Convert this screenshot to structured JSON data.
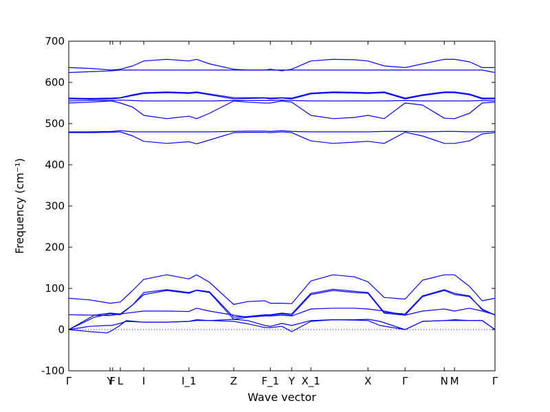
{
  "chart_data": {
    "type": "line",
    "xlabel": "Wave vector",
    "ylabel": "Frequency (cm⁻¹)",
    "ylim": [
      -100,
      700
    ],
    "yticks": [
      -100,
      0,
      100,
      200,
      300,
      400,
      500,
      600,
      700
    ],
    "xlim": [
      0,
      1
    ],
    "grid": false,
    "line_color": "#0000ff",
    "zero_line": {
      "y": 0,
      "style": "dotted",
      "color": "#0000ff"
    },
    "high_symmetry_points": [
      {
        "label": "Γ",
        "x": 0.0
      },
      {
        "label": "Y",
        "x": 0.097
      },
      {
        "label": "F",
        "x": 0.103
      },
      {
        "label": "L",
        "x": 0.121
      },
      {
        "label": "I",
        "x": 0.176
      },
      {
        "label": "I_1",
        "x": 0.282
      },
      {
        "label": "Z",
        "x": 0.387
      },
      {
        "label": "F_1",
        "x": 0.473
      },
      {
        "label": "Y",
        "x": 0.523
      },
      {
        "label": "X_1",
        "x": 0.568
      },
      {
        "label": "X",
        "x": 0.702
      },
      {
        "label": "Γ",
        "x": 0.789
      },
      {
        "label": "N",
        "x": 0.881
      },
      {
        "label": "M",
        "x": 0.905
      },
      {
        "label": "Γ",
        "x": 1.0
      }
    ],
    "series": [
      {
        "x": [
          0,
          0.05,
          0.09,
          0.1,
          0.12,
          0.135,
          0.176,
          0.23,
          0.282,
          0.3,
          0.33,
          0.387,
          0.42,
          0.46,
          0.473,
          0.5,
          0.523,
          0.568,
          0.62,
          0.67,
          0.702,
          0.73,
          0.789,
          0.83,
          0.881,
          0.905,
          0.94,
          0.97,
          1.0
        ],
        "y": [
          0,
          -5,
          -8,
          -3,
          10,
          22,
          18,
          18,
          20,
          24,
          22,
          20,
          14,
          5,
          5,
          8,
          -5,
          20,
          24,
          23,
          22,
          10,
          0,
          20,
          22,
          22,
          22,
          22,
          0
        ]
      },
      {
        "x": [
          0,
          0.05,
          0.09,
          0.1,
          0.12,
          0.135,
          0.176,
          0.23,
          0.282,
          0.3,
          0.33,
          0.387,
          0.42,
          0.46,
          0.473,
          0.5,
          0.523,
          0.568,
          0.62,
          0.67,
          0.702,
          0.73,
          0.789,
          0.83,
          0.881,
          0.905,
          0.94,
          0.97,
          1.0
        ],
        "y": [
          0,
          8,
          10,
          10,
          15,
          20,
          18,
          18,
          20,
          22,
          22,
          25,
          22,
          10,
          8,
          15,
          10,
          22,
          24,
          24,
          25,
          20,
          0,
          20,
          22,
          24,
          22,
          22,
          0
        ]
      },
      {
        "x": [
          0,
          0.06,
          0.097,
          0.121,
          0.15,
          0.176,
          0.23,
          0.282,
          0.3,
          0.33,
          0.387,
          0.42,
          0.46,
          0.473,
          0.5,
          0.523,
          0.568,
          0.62,
          0.67,
          0.702,
          0.74,
          0.789,
          0.83,
          0.881,
          0.905,
          0.94,
          0.97,
          1.0
        ],
        "y": [
          0,
          30,
          38,
          36,
          60,
          85,
          95,
          88,
          95,
          90,
          25,
          30,
          35,
          35,
          38,
          35,
          85,
          95,
          90,
          88,
          40,
          35,
          80,
          95,
          85,
          80,
          50,
          35
        ]
      },
      {
        "x": [
          0,
          0.06,
          0.097,
          0.121,
          0.15,
          0.176,
          0.23,
          0.282,
          0.3,
          0.33,
          0.387,
          0.42,
          0.46,
          0.473,
          0.5,
          0.523,
          0.568,
          0.62,
          0.67,
          0.702,
          0.74,
          0.789,
          0.83,
          0.881,
          0.905,
          0.94,
          0.97,
          1.0
        ],
        "y": [
          0,
          35,
          40,
          38,
          60,
          90,
          97,
          90,
          96,
          92,
          30,
          32,
          36,
          36,
          40,
          38,
          88,
          98,
          93,
          90,
          42,
          38,
          82,
          97,
          88,
          82,
          48,
          36
        ]
      },
      {
        "x": [
          0,
          0.06,
          0.097,
          0.121,
          0.176,
          0.23,
          0.282,
          0.3,
          0.33,
          0.387,
          0.42,
          0.46,
          0.473,
          0.5,
          0.523,
          0.568,
          0.62,
          0.67,
          0.702,
          0.74,
          0.789,
          0.83,
          0.881,
          0.905,
          0.94,
          0.97,
          1.0
        ],
        "y": [
          36,
          35,
          34,
          38,
          45,
          45,
          44,
          52,
          45,
          35,
          30,
          33,
          33,
          35,
          33,
          50,
          52,
          52,
          50,
          45,
          35,
          45,
          50,
          45,
          52,
          45,
          36
        ]
      },
      {
        "x": [
          0,
          0.05,
          0.097,
          0.121,
          0.15,
          0.176,
          0.23,
          0.282,
          0.3,
          0.33,
          0.387,
          0.42,
          0.46,
          0.473,
          0.5,
          0.523,
          0.568,
          0.62,
          0.67,
          0.702,
          0.74,
          0.789,
          0.83,
          0.881,
          0.905,
          0.94,
          0.97,
          1.0
        ],
        "y": [
          76,
          72,
          64,
          67,
          95,
          122,
          133,
          123,
          133,
          115,
          61,
          68,
          70,
          64,
          64,
          63,
          118,
          133,
          128,
          116,
          78,
          74,
          120,
          133,
          133,
          105,
          70,
          76
        ]
      },
      {
        "x": [
          0,
          0.05,
          0.1,
          0.121,
          0.15,
          0.176,
          0.23,
          0.282,
          0.3,
          0.33,
          0.387,
          0.42,
          0.46,
          0.473,
          0.5,
          0.523,
          0.568,
          0.62,
          0.67,
          0.702,
          0.74,
          0.789,
          0.83,
          0.881,
          0.905,
          0.94,
          0.97,
          1.0
        ],
        "y": [
          480,
          480,
          481,
          483,
          480,
          480,
          480,
          480,
          480,
          480,
          481,
          482,
          482,
          481,
          483,
          481,
          480,
          480,
          480,
          480,
          481,
          481,
          480,
          481,
          481,
          480,
          480,
          481
        ]
      },
      {
        "x": [
          0,
          0.05,
          0.1,
          0.121,
          0.15,
          0.176,
          0.23,
          0.282,
          0.3,
          0.33,
          0.387,
          0.42,
          0.46,
          0.473,
          0.5,
          0.523,
          0.568,
          0.62,
          0.67,
          0.702,
          0.74,
          0.789,
          0.83,
          0.881,
          0.905,
          0.94,
          0.97,
          1.0
        ],
        "y": [
          478,
          478,
          479,
          480,
          470,
          457,
          452,
          456,
          451,
          460,
          478,
          479,
          479,
          478,
          480,
          478,
          458,
          452,
          455,
          457,
          452,
          479,
          470,
          452,
          452,
          458,
          475,
          478
        ]
      },
      {
        "x": [
          0,
          0.05,
          0.1,
          0.121,
          0.15,
          0.176,
          0.23,
          0.282,
          0.3,
          0.33,
          0.387,
          0.42,
          0.46,
          0.473,
          0.5,
          0.523,
          0.568,
          0.62,
          0.67,
          0.702,
          0.74,
          0.789,
          0.83,
          0.881,
          0.905,
          0.94,
          0.97,
          1.0
        ],
        "y": [
          550,
          552,
          555,
          550,
          540,
          520,
          512,
          518,
          512,
          525,
          555,
          552,
          550,
          550,
          555,
          552,
          520,
          512,
          515,
          520,
          512,
          550,
          545,
          513,
          512,
          525,
          550,
          552
        ]
      },
      {
        "x": [
          0,
          0.05,
          0.1,
          0.121,
          0.15,
          0.176,
          0.23,
          0.282,
          0.3,
          0.33,
          0.387,
          0.42,
          0.46,
          0.473,
          0.5,
          0.523,
          0.568,
          0.62,
          0.67,
          0.702,
          0.74,
          0.789,
          0.83,
          0.881,
          0.905,
          0.94,
          0.97,
          1.0
        ],
        "y": [
          555,
          556,
          556,
          557,
          556,
          555,
          555,
          555,
          555,
          555,
          556,
          556,
          556,
          556,
          557,
          556,
          555,
          555,
          555,
          555,
          555,
          556,
          555,
          555,
          555,
          555,
          556,
          555
        ]
      },
      {
        "x": [
          0,
          0.05,
          0.1,
          0.121,
          0.15,
          0.176,
          0.23,
          0.282,
          0.3,
          0.33,
          0.387,
          0.42,
          0.46,
          0.473,
          0.5,
          0.523,
          0.568,
          0.62,
          0.67,
          0.702,
          0.74,
          0.789,
          0.83,
          0.881,
          0.905,
          0.94,
          0.97,
          1.0
        ],
        "y": [
          560,
          559,
          560,
          562,
          568,
          573,
          575,
          573,
          575,
          570,
          560,
          561,
          562,
          560,
          562,
          560,
          572,
          575,
          574,
          573,
          575,
          560,
          568,
          575,
          575,
          570,
          560,
          560
        ]
      },
      {
        "x": [
          0,
          0.05,
          0.1,
          0.121,
          0.15,
          0.176,
          0.23,
          0.282,
          0.3,
          0.33,
          0.387,
          0.42,
          0.46,
          0.473,
          0.5,
          0.523,
          0.568,
          0.62,
          0.67,
          0.702,
          0.74,
          0.789,
          0.83,
          0.881,
          0.905,
          0.94,
          0.97,
          1.0
        ],
        "y": [
          562,
          561,
          562,
          563,
          570,
          575,
          577,
          575,
          577,
          572,
          563,
          563,
          563,
          562,
          563,
          562,
          574,
          577,
          576,
          575,
          577,
          562,
          570,
          577,
          577,
          572,
          562,
          562
        ]
      },
      {
        "x": [
          0,
          0.05,
          0.1,
          0.121,
          0.15,
          0.176,
          0.23,
          0.282,
          0.3,
          0.33,
          0.387,
          0.42,
          0.46,
          0.473,
          0.5,
          0.523,
          0.568,
          0.62,
          0.67,
          0.702,
          0.74,
          0.789,
          0.83,
          0.881,
          0.905,
          0.94,
          0.97,
          1.0
        ],
        "y": [
          624,
          626,
          628,
          630,
          630,
          630,
          630,
          630,
          630,
          630,
          630,
          630,
          630,
          630,
          630,
          630,
          630,
          630,
          630,
          630,
          630,
          630,
          630,
          630,
          630,
          630,
          630,
          624
        ]
      },
      {
        "x": [
          0,
          0.05,
          0.1,
          0.121,
          0.15,
          0.176,
          0.23,
          0.282,
          0.3,
          0.33,
          0.387,
          0.42,
          0.46,
          0.473,
          0.5,
          0.523,
          0.568,
          0.62,
          0.67,
          0.702,
          0.74,
          0.789,
          0.83,
          0.881,
          0.905,
          0.94,
          0.97,
          1.0
        ],
        "y": [
          636,
          634,
          630,
          632,
          640,
          652,
          656,
          652,
          656,
          645,
          632,
          630,
          630,
          632,
          628,
          632,
          652,
          656,
          655,
          652,
          640,
          636,
          645,
          656,
          656,
          650,
          636,
          636
        ]
      }
    ]
  }
}
